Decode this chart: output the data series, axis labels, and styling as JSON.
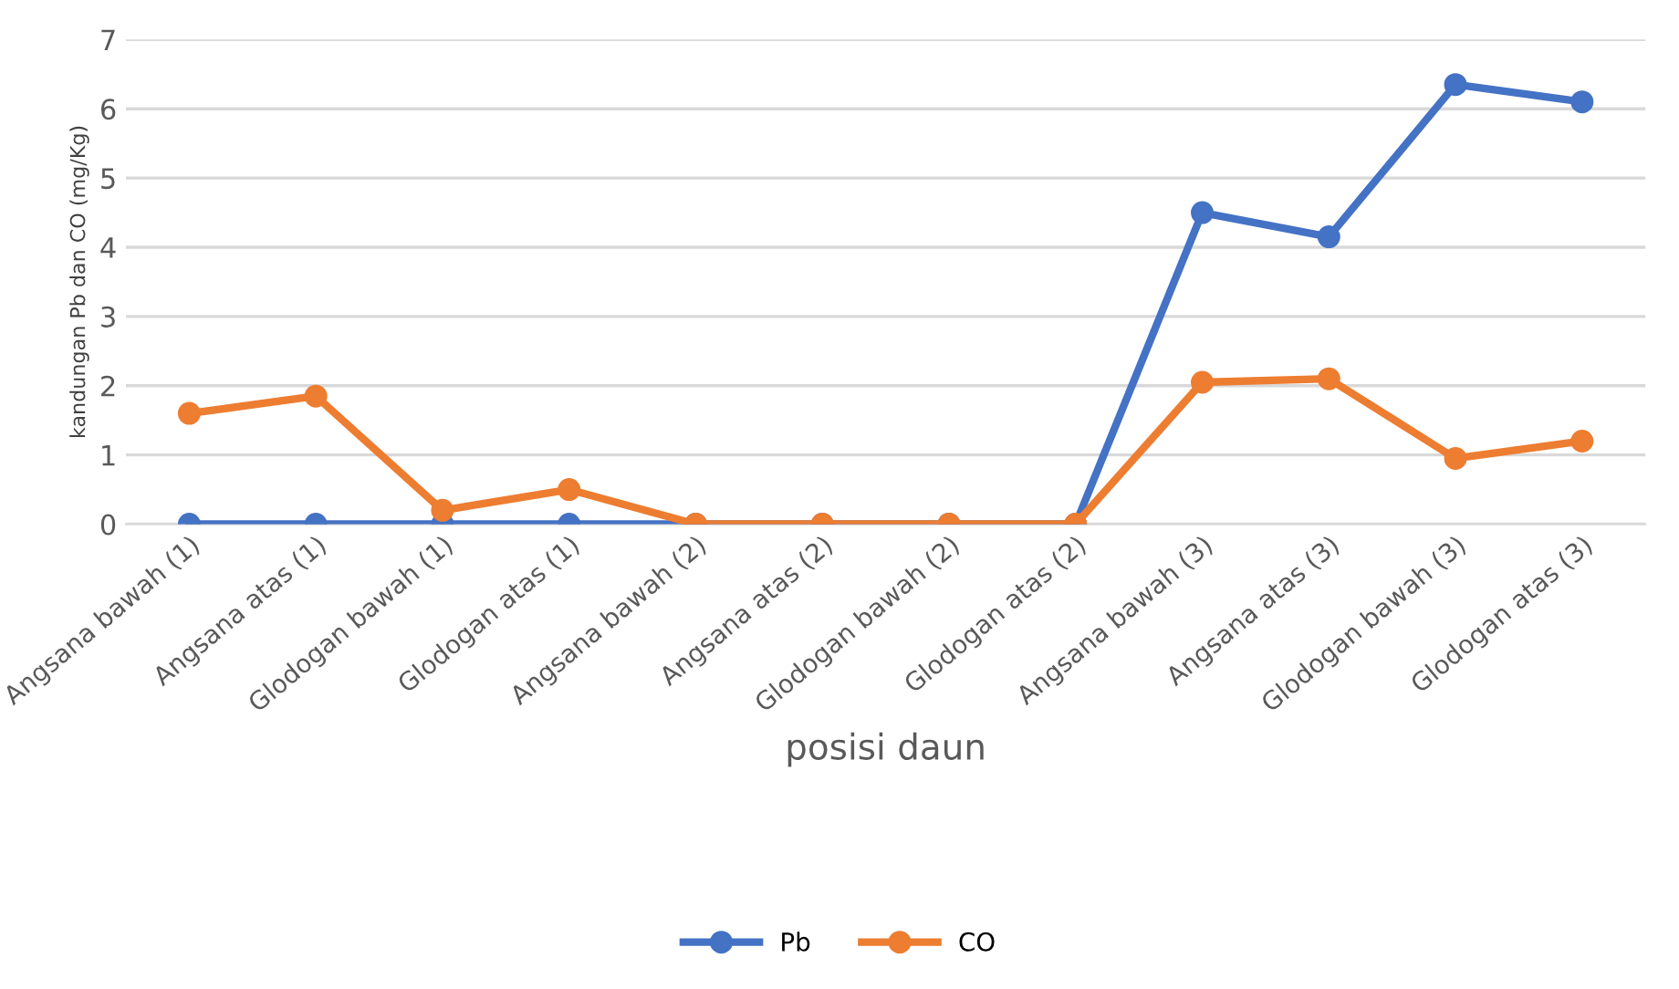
{
  "chart_data": {
    "type": "line",
    "xlabel": "posisi daun",
    "ylabel": "kandungan Pb dan CO (mg/Kg)",
    "categories": [
      "Angsana bawah (1)",
      "Angsana atas (1)",
      "Glodogan bawah (1)",
      "Glodogan atas (1)",
      "Angsana bawah (2)",
      "Angsana atas (2)",
      "Glodogan bawah (2)",
      "Glodogan atas (2)",
      "Angsana bawah (3)",
      "Angsana atas (3)",
      "Glodogan bawah (3)",
      "Glodogan atas (3)"
    ],
    "series": [
      {
        "name": "Pb",
        "color": "#4472c4",
        "values": [
          0,
          0,
          0,
          0,
          0,
          0,
          0,
          0,
          4.5,
          4.15,
          6.35,
          6.1
        ]
      },
      {
        "name": "CO",
        "color": "#ed7d31",
        "values": [
          1.6,
          1.85,
          0.2,
          0.5,
          0,
          0,
          0,
          0,
          2.05,
          2.1,
          0.95,
          1.2
        ]
      }
    ],
    "ylim": [
      0,
      7
    ],
    "yticks": [
      0,
      1,
      2,
      3,
      4,
      5,
      6,
      7
    ],
    "grid": "y",
    "legend": "bottom",
    "marker": "circle",
    "line_style": "solid"
  }
}
